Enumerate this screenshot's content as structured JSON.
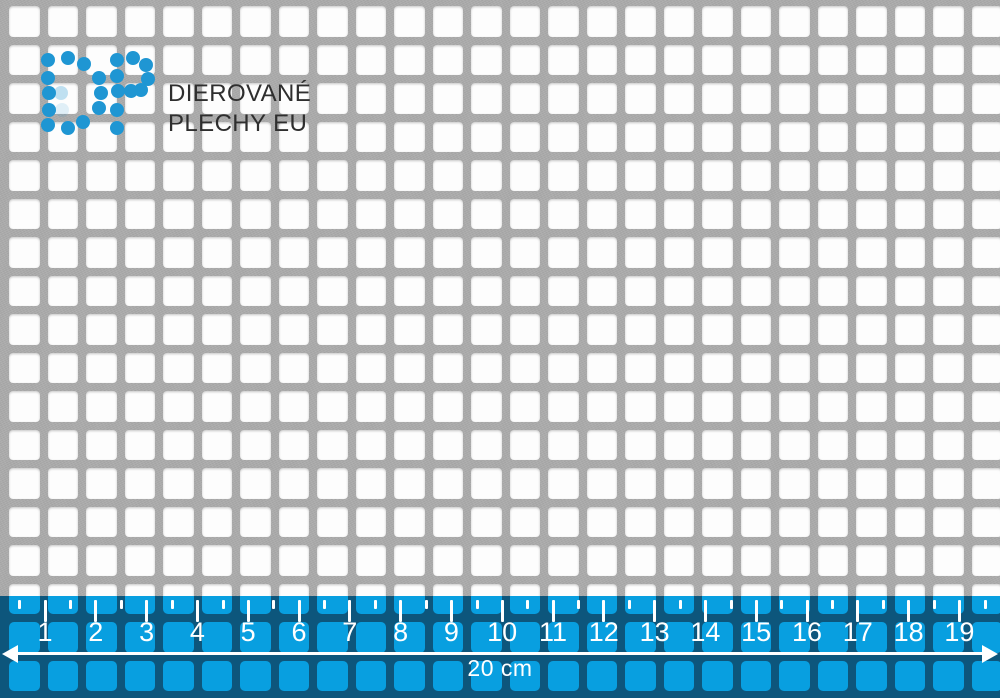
{
  "brand": {
    "logo_icon": "dp-dots-logo",
    "name_line1": "DIEROVANÉ",
    "name_line2": "PLECHY EU",
    "dot_color": "#1f96d3",
    "text_color": "#2e2e2e"
  },
  "sheet": {
    "metal_color": "#adadad",
    "hole_color": "#fdfdfd"
  },
  "ruler": {
    "numbers": [
      "1",
      "2",
      "3",
      "4",
      "5",
      "6",
      "7",
      "8",
      "9",
      "10",
      "11",
      "12",
      "13",
      "14",
      "15",
      "16",
      "17",
      "18",
      "19"
    ],
    "total_label": "20 cm",
    "unit": "cm",
    "band_color": "#0d567c",
    "square_color": "#089fe0",
    "mark_color": "#ffffff"
  }
}
